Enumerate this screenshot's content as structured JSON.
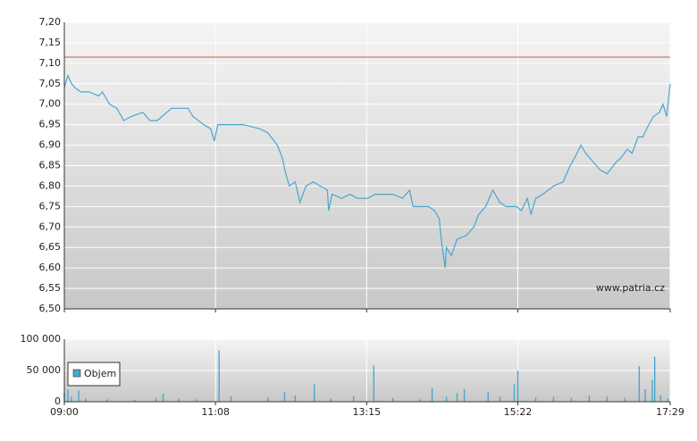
{
  "chart_data": [
    {
      "type": "line",
      "color": "#4aa6cf",
      "reference_line": 7.115,
      "reference_color": "#d9534f",
      "watermark": "www.patria.cz",
      "xlim": [
        0,
        509
      ],
      "ylim": [
        6.5,
        7.2
      ],
      "yticks": [
        {
          "value": 6.5,
          "label": "6,50"
        },
        {
          "value": 6.55,
          "label": "6,55"
        },
        {
          "value": 6.6,
          "label": "6,60"
        },
        {
          "value": 6.65,
          "label": "6,65"
        },
        {
          "value": 6.7,
          "label": "6,70"
        },
        {
          "value": 6.75,
          "label": "6,75"
        },
        {
          "value": 6.8,
          "label": "6,80"
        },
        {
          "value": 6.85,
          "label": "6,85"
        },
        {
          "value": 6.9,
          "label": "6,90"
        },
        {
          "value": 6.95,
          "label": "6,95"
        },
        {
          "value": 7.0,
          "label": "7,00"
        },
        {
          "value": 7.05,
          "label": "7,05"
        },
        {
          "value": 7.1,
          "label": "7,10"
        },
        {
          "value": 7.15,
          "label": "7,15"
        },
        {
          "value": 7.2,
          "label": "7,20"
        }
      ],
      "grid": true,
      "x": [
        0,
        3,
        6,
        9,
        14,
        21,
        29,
        32,
        38,
        44,
        50,
        56,
        66,
        72,
        78,
        86,
        90,
        104,
        108,
        117,
        123,
        126,
        129,
        141,
        150,
        164,
        171,
        179,
        183,
        186,
        189,
        194,
        198,
        203,
        209,
        215,
        221,
        222,
        225,
        233,
        240,
        246,
        255,
        261,
        270,
        276,
        284,
        290,
        293,
        299,
        306,
        311,
        315,
        317,
        320,
        321,
        325,
        330,
        338,
        344,
        348,
        354,
        360,
        366,
        371,
        380,
        384,
        389,
        392,
        396,
        402,
        411,
        419,
        425,
        429,
        434,
        438,
        444,
        450,
        456,
        464,
        468,
        473,
        477,
        482,
        486,
        491,
        495,
        500,
        503,
        506,
        509
      ],
      "values": [
        7.04,
        7.07,
        7.05,
        7.04,
        7.03,
        7.03,
        7.02,
        7.03,
        7.0,
        6.99,
        6.96,
        6.97,
        6.98,
        6.96,
        6.96,
        6.98,
        6.99,
        6.99,
        6.97,
        6.95,
        6.94,
        6.91,
        6.95,
        6.95,
        6.95,
        6.94,
        6.93,
        6.9,
        6.87,
        6.83,
        6.8,
        6.81,
        6.76,
        6.8,
        6.81,
        6.8,
        6.79,
        6.74,
        6.78,
        6.77,
        6.78,
        6.77,
        6.77,
        6.78,
        6.78,
        6.78,
        6.77,
        6.79,
        6.75,
        6.75,
        6.75,
        6.74,
        6.72,
        6.66,
        6.6,
        6.65,
        6.63,
        6.67,
        6.68,
        6.7,
        6.73,
        6.75,
        6.79,
        6.76,
        6.75,
        6.75,
        6.74,
        6.77,
        6.73,
        6.77,
        6.78,
        6.8,
        6.81,
        6.85,
        6.87,
        6.9,
        6.88,
        6.86,
        6.84,
        6.83,
        6.86,
        6.87,
        6.89,
        6.88,
        6.92,
        6.92,
        6.95,
        6.97,
        6.98,
        7.0,
        6.97,
        7.05
      ]
    },
    {
      "type": "bar",
      "color": "#4aa6cf",
      "legend": "Objem",
      "xlim": [
        0,
        509
      ],
      "xticks": [
        {
          "value": 0,
          "label": "09:00"
        },
        {
          "value": 127,
          "label": "11:08"
        },
        {
          "value": 254,
          "label": "13:15"
        },
        {
          "value": 381,
          "label": "15:22"
        },
        {
          "value": 509,
          "label": "17:29"
        }
      ],
      "ylim": [
        0,
        100000
      ],
      "yticks": [
        0,
        {
          "value": 50000,
          "label": "50 000"
        },
        {
          "value": 100000,
          "label": "100 000"
        }
      ],
      "grid": true,
      "x": [
        0,
        3,
        6,
        12,
        18,
        36,
        59,
        77,
        83,
        96,
        111,
        130,
        140,
        171,
        185,
        194,
        210,
        224,
        243,
        260,
        276,
        299,
        309,
        321,
        330,
        336,
        356,
        366,
        378,
        381,
        396,
        411,
        426,
        441,
        456,
        471,
        483,
        488,
        494,
        496,
        501,
        507
      ],
      "values": [
        15000,
        20000,
        8000,
        18000,
        5000,
        4000,
        3000,
        6000,
        13000,
        5000,
        4000,
        82000,
        9000,
        7000,
        15000,
        10000,
        28000,
        5000,
        9000,
        58000,
        6000,
        4000,
        22000,
        8000,
        14000,
        20000,
        16000,
        8000,
        28000,
        50000,
        7000,
        8000,
        6000,
        10000,
        8000,
        6000,
        57000,
        20000,
        35000,
        72000,
        10000,
        5000
      ]
    }
  ]
}
